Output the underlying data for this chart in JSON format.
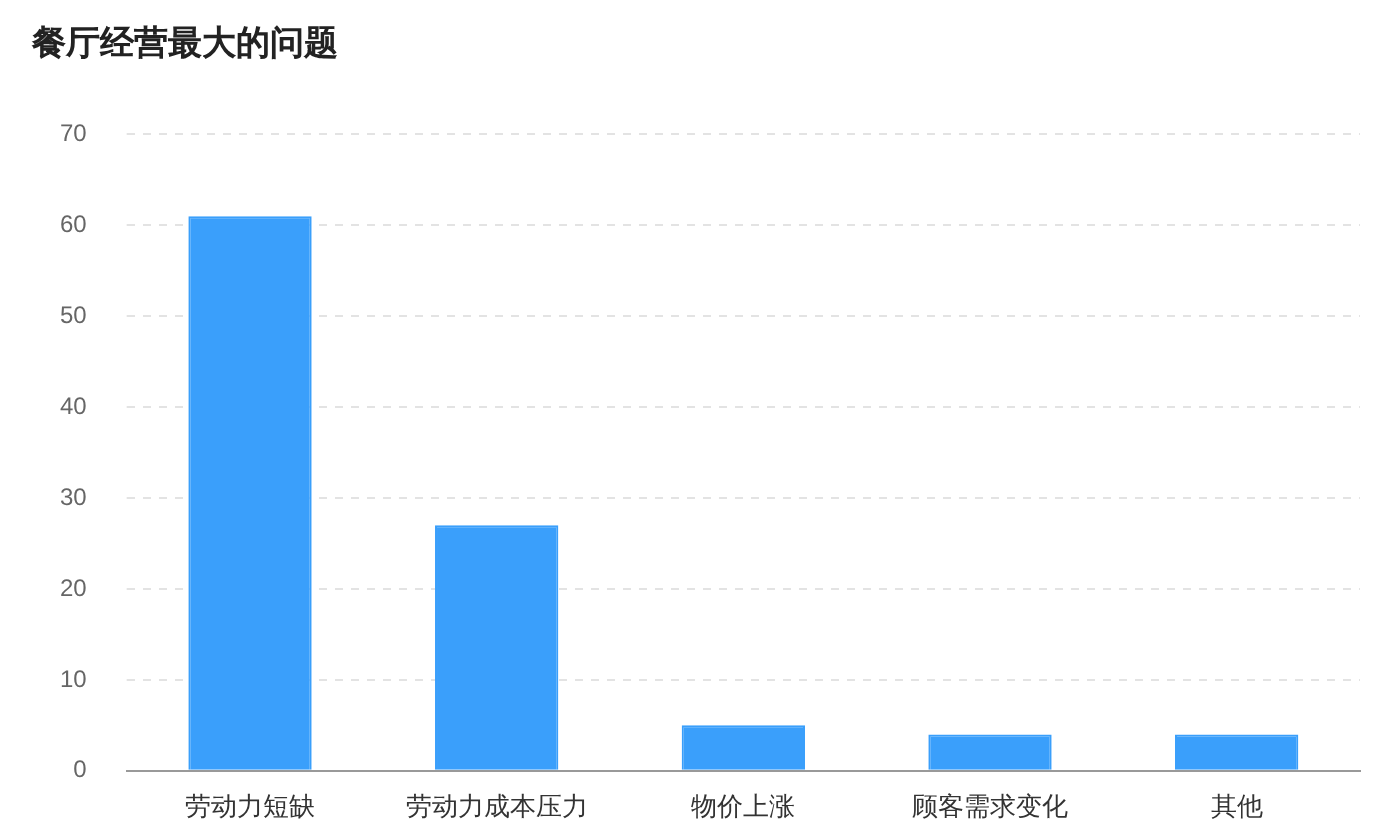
{
  "chart_data": {
    "type": "bar",
    "title": "餐厅经营最大的问题",
    "categories": [
      "劳动力短缺",
      "劳动力成本压力",
      "物价上涨",
      "顾客需求变化",
      "其他"
    ],
    "values": [
      61,
      27,
      5,
      4,
      4
    ],
    "color": "#3a9ffb",
    "ylim": [
      0,
      70
    ],
    "yticks": [
      0,
      10,
      20,
      30,
      40,
      50,
      60,
      70
    ],
    "grid": "y"
  }
}
